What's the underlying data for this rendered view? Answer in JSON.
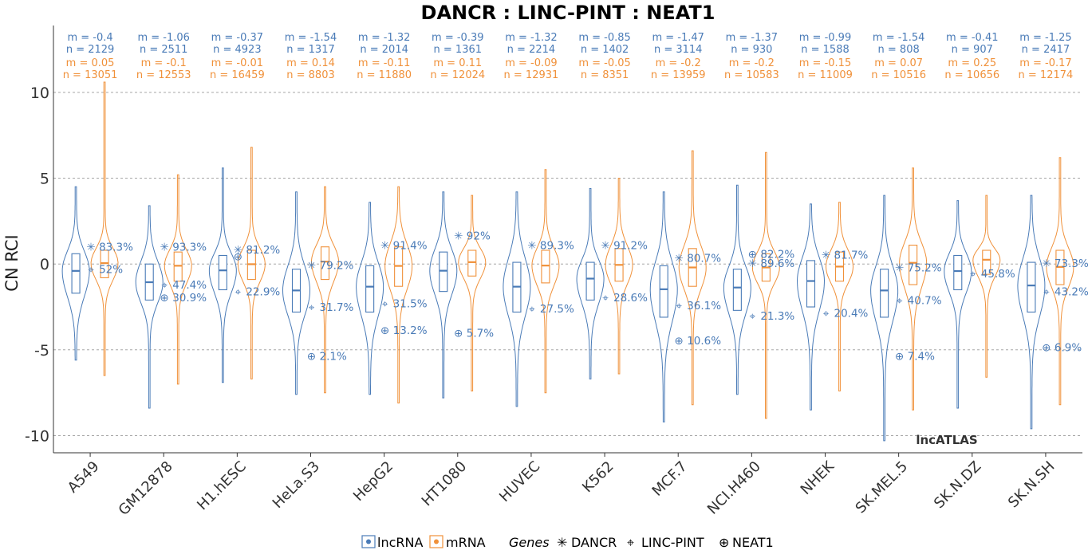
{
  "title": "DANCR : LINC-PINT : NEAT1",
  "watermark": "lncATLAS",
  "colors": {
    "lncRNA": "#4a7bb7",
    "mRNA": "#f0913a",
    "grid": "#9a9a9a"
  },
  "legend": {
    "lncrna_label": "lncRNA",
    "mrna_label": "mRNA",
    "genes_title": "Genes",
    "genes": [
      {
        "symbol": "✳",
        "name": "DANCR"
      },
      {
        "symbol": "⌖",
        "name": "LINC-PINT"
      },
      {
        "symbol": "⊕",
        "name": "NEAT1"
      }
    ]
  },
  "chart_data": {
    "type": "violin",
    "title": "DANCR : LINC-PINT : NEAT1",
    "xlabel": "",
    "ylabel": "CN RCI",
    "ylim": [
      -11.0,
      13.9
    ],
    "yticks": [
      10,
      5,
      0,
      -5,
      -10
    ],
    "ytick_labels": [
      "10",
      "5",
      "0",
      "-5",
      "-10"
    ],
    "grid": "horizontal dashed",
    "legend_position": "bottom",
    "categories": [
      "A549",
      "GM12878",
      "H1.hESC",
      "HeLa.S3",
      "HepG2",
      "HT1080",
      "HUVEC",
      "K562",
      "MCF.7",
      "NCI.H460",
      "NHEK",
      "SK.MEL.5",
      "SK.N.DZ",
      "SK.N.SH"
    ],
    "series": [
      {
        "name": "lncRNA",
        "stats": [
          {
            "m": "m = -0.4",
            "n": "n = 2129"
          },
          {
            "m": "m = -1.06",
            "n": "n = 2511"
          },
          {
            "m": "m = -0.37",
            "n": "n = 4923"
          },
          {
            "m": "m = -1.54",
            "n": "n = 1317"
          },
          {
            "m": "m = -1.32",
            "n": "n = 2014"
          },
          {
            "m": "m = -0.39",
            "n": "n = 1361"
          },
          {
            "m": "m = -1.32",
            "n": "n = 2214"
          },
          {
            "m": "m = -0.85",
            "n": "n = 1402"
          },
          {
            "m": "m = -1.47",
            "n": "n = 3114"
          },
          {
            "m": "m = -1.37",
            "n": "n = 930"
          },
          {
            "m": "m = -0.99",
            "n": "n = 1588"
          },
          {
            "m": "m = -1.54",
            "n": "n = 808"
          },
          {
            "m": "m = -0.41",
            "n": "n = 907"
          },
          {
            "m": "m = -1.25",
            "n": "n = 2417"
          }
        ],
        "median": [
          -0.4,
          -1.06,
          -0.37,
          -1.54,
          -1.32,
          -0.39,
          -1.32,
          -0.85,
          -1.47,
          -1.37,
          -0.99,
          -1.54,
          -0.41,
          -1.25
        ],
        "q1": [
          -1.7,
          -2.1,
          -1.5,
          -2.8,
          -2.8,
          -1.6,
          -2.8,
          -2.1,
          -3.1,
          -2.7,
          -2.5,
          -3.1,
          -1.5,
          -2.8
        ],
        "q3": [
          0.6,
          0.0,
          0.5,
          -0.3,
          -0.1,
          0.7,
          0.1,
          0.1,
          -0.1,
          -0.3,
          0.2,
          -0.3,
          0.5,
          0.1
        ],
        "min": [
          -5.6,
          -8.4,
          -6.9,
          -7.6,
          -7.6,
          -7.8,
          -8.3,
          -6.7,
          -9.2,
          -7.6,
          -8.5,
          -10.3,
          -8.4,
          -9.6
        ],
        "max": [
          4.5,
          3.4,
          5.6,
          4.2,
          3.6,
          4.2,
          4.2,
          4.4,
          4.2,
          4.6,
          3.5,
          4.0,
          3.7,
          4.0
        ]
      },
      {
        "name": "mRNA",
        "stats": [
          {
            "m": "m = 0.05",
            "n": "n = 13051"
          },
          {
            "m": "m = -0.1",
            "n": "n = 12553"
          },
          {
            "m": "m = -0.01",
            "n": "n = 16459"
          },
          {
            "m": "m = 0.14",
            "n": "n = 8803"
          },
          {
            "m": "m = -0.11",
            "n": "n = 11880"
          },
          {
            "m": "m = 0.11",
            "n": "n = 12024"
          },
          {
            "m": "m = -0.09",
            "n": "n = 12931"
          },
          {
            "m": "m = -0.05",
            "n": "n = 8351"
          },
          {
            "m": "m = -0.2",
            "n": "n = 13959"
          },
          {
            "m": "m = -0.2",
            "n": "n = 10583"
          },
          {
            "m": "m = -0.15",
            "n": "n = 11009"
          },
          {
            "m": "m = 0.07",
            "n": "n = 10516"
          },
          {
            "m": "m = 0.25",
            "n": "n = 10656"
          },
          {
            "m": "m = -0.17",
            "n": "n = 12174"
          }
        ],
        "median": [
          0.05,
          -0.1,
          -0.01,
          0.14,
          -0.11,
          0.11,
          -0.09,
          -0.05,
          -0.2,
          -0.2,
          -0.15,
          0.07,
          0.25,
          -0.17
        ],
        "q1": [
          -0.8,
          -1.0,
          -0.9,
          -0.9,
          -1.3,
          -0.7,
          -1.1,
          -1.0,
          -1.3,
          -1.0,
          -1.0,
          -1.2,
          -0.6,
          -1.2
        ],
        "q3": [
          0.8,
          0.7,
          0.8,
          1.0,
          1.0,
          0.8,
          0.8,
          0.9,
          0.9,
          0.6,
          0.7,
          1.1,
          0.8,
          0.8
        ],
        "min": [
          -6.5,
          -7.0,
          -6.7,
          -7.5,
          -8.1,
          -7.4,
          -7.5,
          -6.4,
          -8.2,
          -9.0,
          -7.4,
          -8.5,
          -6.6,
          -8.2
        ],
        "max": [
          10.6,
          5.2,
          6.8,
          4.5,
          4.5,
          4.0,
          5.5,
          5.0,
          6.6,
          6.5,
          3.6,
          5.6,
          4.0,
          6.2
        ]
      }
    ],
    "genes": [
      {
        "name": "DANCR",
        "symbol": "✳",
        "values": [
          1.0,
          1.0,
          0.85,
          -0.05,
          1.1,
          1.65,
          1.1,
          1.1,
          0.35,
          0.05,
          0.55,
          -0.2,
          null,
          0.05
        ],
        "labels": [
          "83.3%",
          "93.3%",
          "81.2%",
          "79.2%",
          "91.4%",
          "92%",
          "89.3%",
          "91.2%",
          "80.7%",
          "89.6%",
          "81.7%",
          "75.2%",
          null,
          "73.3%"
        ]
      },
      {
        "name": "LINC-PINT",
        "symbol": "⌖",
        "values": [
          -0.3,
          -1.2,
          -1.6,
          -2.5,
          -2.3,
          null,
          -2.6,
          -1.95,
          -2.4,
          -3.0,
          -2.85,
          -2.1,
          -0.55,
          -1.6
        ],
        "labels": [
          "52%",
          "47.4%",
          "22.9%",
          "31.7%",
          "31.5%",
          null,
          "27.5%",
          "28.6%",
          "36.1%",
          "21.3%",
          "20.4%",
          "40.7%",
          "45.8%",
          "43.2%"
        ]
      },
      {
        "name": "NEAT1",
        "symbol": "⊕",
        "values": [
          null,
          -1.95,
          0.45,
          -5.35,
          -3.85,
          -4.0,
          null,
          null,
          -4.45,
          0.6,
          null,
          -5.35,
          null,
          -4.85
        ],
        "labels": [
          null,
          "30.9%",
          null,
          "2.1%",
          "13.2%",
          "5.7%",
          null,
          null,
          "10.6%",
          "82.2%",
          null,
          "7.4%",
          null,
          "6.9%"
        ]
      }
    ]
  }
}
